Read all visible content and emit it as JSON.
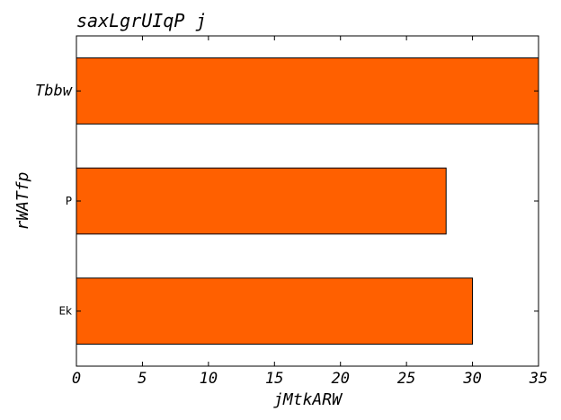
{
  "chart_data": {
    "type": "bar",
    "orientation": "horizontal",
    "title": "saxLgrUIqP j",
    "xlabel": "jMtkARW",
    "ylabel": "rWATfp",
    "categories": [
      "Ek",
      "P",
      "Tbbw"
    ],
    "values": [
      30,
      28,
      35
    ],
    "xlim": [
      0,
      35
    ],
    "xticks": [
      0,
      5,
      10,
      15,
      20,
      25,
      30,
      35
    ],
    "grid": false,
    "legend": "none",
    "bar_color": "#ff6000"
  }
}
